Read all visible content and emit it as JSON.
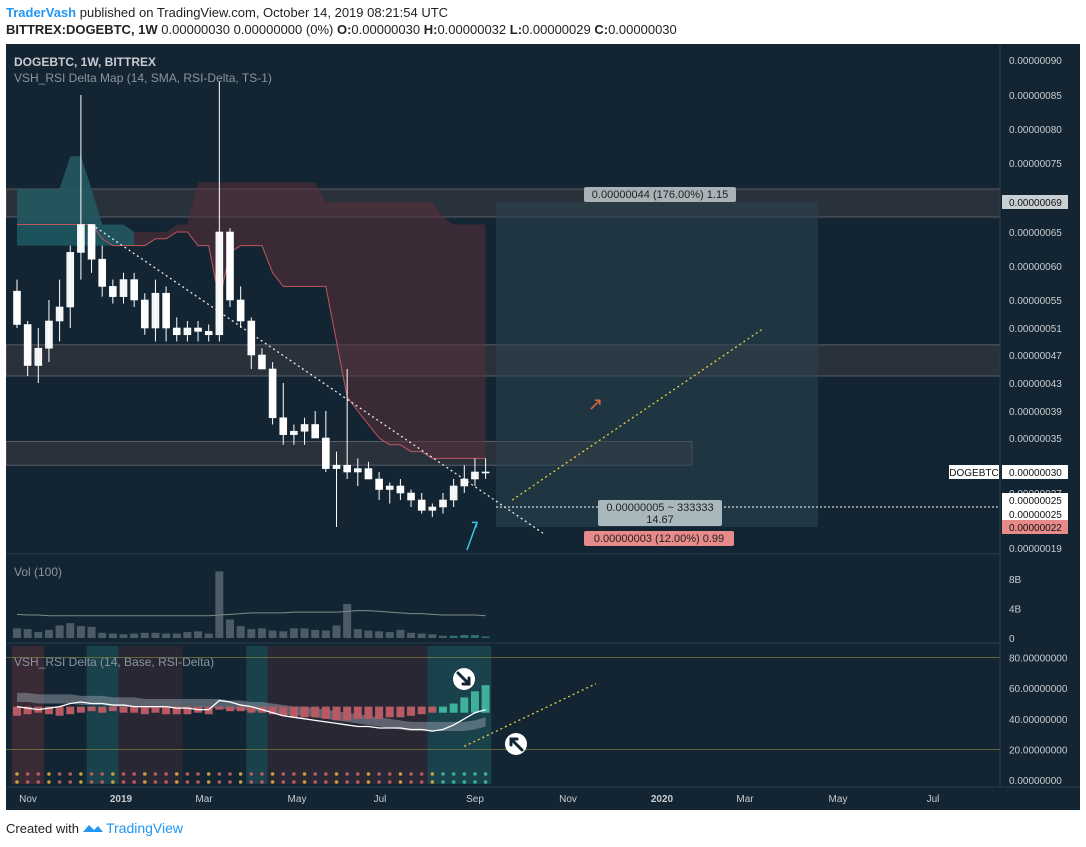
{
  "header": {
    "author": "TraderVash",
    "published_text": "published on TradingView.com, October 14, 2019 08:21:54 UTC",
    "symbol": "BITTREX:DOGEBTC, 1W",
    "change_text": "0.00000030 0.00000000 (0%)",
    "open_label": "O:",
    "open_value": "0.00000030",
    "high_label": "H:",
    "high_value": "0.00000032",
    "low_label": "L:",
    "low_value": "0.00000029",
    "close_label": "C:",
    "close_value": "0.00000030"
  },
  "footer": {
    "created_with": "Created with",
    "brand": "TradingView"
  },
  "chart_data": {
    "type": "candlestick",
    "title": "DOGEBTC, 1W, BITTREX",
    "indicator_label": "VSH_RSI Delta Map (14, SMA, RSI-Delta, TS-1)",
    "colors": {
      "background": "#132532",
      "up": "#ffffff",
      "down": "#ffffff",
      "cloud_red": "#5a2f3a",
      "cloud_teal": "#1f5b63",
      "zone": "#3c3c44",
      "target_box": "#2c4450",
      "stop_box": "#26404e",
      "trendline": "#e8e8e8",
      "projection": "#e6d23a",
      "arrow": "#35c8e6"
    },
    "price_axis": {
      "ticks": [
        "0.00000090",
        "0.00000085",
        "0.00000080",
        "0.00000075",
        "0.00000069",
        "0.00000065",
        "0.00000060",
        "0.00000055",
        "0.00000051",
        "0.00000047",
        "0.00000043",
        "0.00000039",
        "0.00000035",
        "0.00000030",
        "0.00000027",
        "0.00000025",
        "0.00000022",
        "0.00000019"
      ],
      "range": [
        1.8e-07,
        9.2e-07
      ]
    },
    "time_axis": {
      "labels": [
        "Nov",
        "2019",
        "Mar",
        "May",
        "Jul",
        "Sep",
        "Nov",
        "2020",
        "Mar",
        "May",
        "Jul"
      ]
    },
    "candles": [
      {
        "o": 5.63e-07,
        "h": 5.8e-07,
        "l": 5.1e-07,
        "c": 5.15e-07
      },
      {
        "o": 5.15e-07,
        "h": 5.2e-07,
        "l": 4.4e-07,
        "c": 4.55e-07
      },
      {
        "o": 4.55e-07,
        "h": 5.1e-07,
        "l": 4.3e-07,
        "c": 4.8e-07
      },
      {
        "o": 4.8e-07,
        "h": 5.5e-07,
        "l": 4.6e-07,
        "c": 5.2e-07
      },
      {
        "o": 5.2e-07,
        "h": 5.8e-07,
        "l": 4.9e-07,
        "c": 5.4e-07
      },
      {
        "o": 5.4e-07,
        "h": 6.3e-07,
        "l": 5.1e-07,
        "c": 6.2e-07
      },
      {
        "o": 6.2e-07,
        "h": 8.5e-07,
        "l": 5.8e-07,
        "c": 6.6e-07
      },
      {
        "o": 6.6e-07,
        "h": 6.6e-07,
        "l": 5.9e-07,
        "c": 6.1e-07
      },
      {
        "o": 6.1e-07,
        "h": 6.3e-07,
        "l": 5.55e-07,
        "c": 5.7e-07
      },
      {
        "o": 5.7e-07,
        "h": 5.8e-07,
        "l": 5.45e-07,
        "c": 5.55e-07
      },
      {
        "o": 5.55e-07,
        "h": 5.9e-07,
        "l": 5.45e-07,
        "c": 5.8e-07
      },
      {
        "o": 5.8e-07,
        "h": 5.9e-07,
        "l": 5.4e-07,
        "c": 5.5e-07
      },
      {
        "o": 5.5e-07,
        "h": 5.6e-07,
        "l": 5e-07,
        "c": 5.1e-07
      },
      {
        "o": 5.1e-07,
        "h": 5.8e-07,
        "l": 4.9e-07,
        "c": 5.6e-07
      },
      {
        "o": 5.6e-07,
        "h": 5.7e-07,
        "l": 4.9e-07,
        "c": 5.1e-07
      },
      {
        "o": 5.1e-07,
        "h": 5.25e-07,
        "l": 4.9e-07,
        "c": 5e-07
      },
      {
        "o": 5e-07,
        "h": 5.2e-07,
        "l": 4.9e-07,
        "c": 5.1e-07
      },
      {
        "o": 5.1e-07,
        "h": 5.2e-07,
        "l": 4.9e-07,
        "c": 5.05e-07
      },
      {
        "o": 5.05e-07,
        "h": 5.15e-07,
        "l": 4.9e-07,
        "c": 5e-07
      },
      {
        "o": 5e-07,
        "h": 8.7e-07,
        "l": 4.9e-07,
        "c": 6.5e-07
      },
      {
        "o": 6.5e-07,
        "h": 6.55e-07,
        "l": 5.4e-07,
        "c": 5.5e-07
      },
      {
        "o": 5.5e-07,
        "h": 5.7e-07,
        "l": 5.1e-07,
        "c": 5.2e-07
      },
      {
        "o": 5.2e-07,
        "h": 5.25e-07,
        "l": 4.5e-07,
        "c": 4.7e-07
      },
      {
        "o": 4.7e-07,
        "h": 4.8e-07,
        "l": 4.5e-07,
        "c": 4.5e-07
      },
      {
        "o": 4.5e-07,
        "h": 4.6e-07,
        "l": 3.7e-07,
        "c": 3.8e-07
      },
      {
        "o": 3.8e-07,
        "h": 4.3e-07,
        "l": 3.4e-07,
        "c": 3.55e-07
      },
      {
        "o": 3.55e-07,
        "h": 3.7e-07,
        "l": 3.4e-07,
        "c": 3.6e-07
      },
      {
        "o": 3.6e-07,
        "h": 3.8e-07,
        "l": 3.4e-07,
        "c": 3.7e-07
      },
      {
        "o": 3.7e-07,
        "h": 3.9e-07,
        "l": 3.5e-07,
        "c": 3.5e-07
      },
      {
        "o": 3.5e-07,
        "h": 3.9e-07,
        "l": 3e-07,
        "c": 3.05e-07
      },
      {
        "o": 3.05e-07,
        "h": 3.3e-07,
        "l": 2.2e-07,
        "c": 3.1e-07
      },
      {
        "o": 3.1e-07,
        "h": 4.5e-07,
        "l": 2.9e-07,
        "c": 3e-07
      },
      {
        "o": 3e-07,
        "h": 3.2e-07,
        "l": 2.8e-07,
        "c": 3.05e-07
      },
      {
        "o": 3.05e-07,
        "h": 3.15e-07,
        "l": 2.9e-07,
        "c": 2.9e-07
      },
      {
        "o": 2.9e-07,
        "h": 3e-07,
        "l": 2.6e-07,
        "c": 2.75e-07
      },
      {
        "o": 2.75e-07,
        "h": 2.85e-07,
        "l": 2.55e-07,
        "c": 2.8e-07
      },
      {
        "o": 2.8e-07,
        "h": 2.9e-07,
        "l": 2.6e-07,
        "c": 2.7e-07
      },
      {
        "o": 2.7e-07,
        "h": 2.75e-07,
        "l": 2.5e-07,
        "c": 2.6e-07
      },
      {
        "o": 2.6e-07,
        "h": 2.7e-07,
        "l": 2.4e-07,
        "c": 2.45e-07
      },
      {
        "o": 2.45e-07,
        "h": 2.55e-07,
        "l": 2.35e-07,
        "c": 2.5e-07
      },
      {
        "o": 2.5e-07,
        "h": 2.7e-07,
        "l": 2.4e-07,
        "c": 2.6e-07
      },
      {
        "o": 2.6e-07,
        "h": 2.9e-07,
        "l": 2.5e-07,
        "c": 2.8e-07
      },
      {
        "o": 2.8e-07,
        "h": 3.1e-07,
        "l": 2.7e-07,
        "c": 2.9e-07
      },
      {
        "o": 2.9e-07,
        "h": 3.2e-07,
        "l": 2.8e-07,
        "c": 3e-07
      },
      {
        "o": 3e-07,
        "h": 3.2e-07,
        "l": 2.9e-07,
        "c": 3e-07
      }
    ],
    "cloud": {
      "upper": [
        7.1e-07,
        7.1e-07,
        7.1e-07,
        7.1e-07,
        7.1e-07,
        7.6e-07,
        7.6e-07,
        7.1e-07,
        6.6e-07,
        6.6e-07,
        6.6e-07,
        6.5e-07,
        6.5e-07,
        6.5e-07,
        6.5e-07,
        6.6e-07,
        6.6e-07,
        7.2e-07,
        7.2e-07,
        7.2e-07,
        7.2e-07,
        7.2e-07,
        7.2e-07,
        7.2e-07,
        7.2e-07,
        7.2e-07,
        7.2e-07,
        7.2e-07,
        7.2e-07,
        6.9e-07,
        6.9e-07,
        6.9e-07,
        6.9e-07,
        6.9e-07,
        6.9e-07,
        6.9e-07,
        6.9e-07,
        6.9e-07,
        6.9e-07,
        6.9e-07,
        6.7e-07,
        6.6e-07,
        6.6e-07,
        6.6e-07,
        6.6e-07
      ],
      "lower": [
        6.6e-07,
        6.6e-07,
        6.6e-07,
        6.6e-07,
        6.6e-07,
        6.6e-07,
        6.6e-07,
        6.6e-07,
        6.4e-07,
        6.3e-07,
        6.3e-07,
        6.3e-07,
        6.3e-07,
        6.4e-07,
        6.4e-07,
        6.5e-07,
        6.5e-07,
        6.3e-07,
        6.3e-07,
        5.5e-07,
        6.2e-07,
        6.3e-07,
        6.3e-07,
        6.3e-07,
        5.9e-07,
        5.7e-07,
        5.7e-07,
        5.7e-07,
        5.7e-07,
        5.7e-07,
        4.9e-07,
        4.1e-07,
        3.9e-07,
        3.7e-07,
        3.5e-07,
        3.4e-07,
        3.4e-07,
        3.3e-07,
        3.3e-07,
        3.2e-07,
        3.2e-07,
        3.2e-07,
        3.2e-07,
        3.2e-07,
        3.2e-07
      ]
    },
    "zones": [
      {
        "from": 6.7e-07,
        "to": 7.1e-07
      },
      {
        "from": 4.4e-07,
        "to": 4.85e-07
      },
      {
        "from": 3.1e-07,
        "to": 3.45e-07
      }
    ],
    "position": {
      "entry": 2.5e-07,
      "target": 6.9e-07,
      "stop": 2.2e-07,
      "target_label": "0.00000044 (176.00%) 1.15",
      "entry_label_1": "0.00000005 ~ 333333",
      "entry_label_2": "14.67",
      "stop_label": "0.00000003 (12.00%) 0.99"
    },
    "last_price_tag": {
      "symbol": "DOGEBTC",
      "value": "0.00000030"
    },
    "axis_tags": [
      {
        "value": "0.00000069",
        "kind": "target"
      },
      {
        "value": "0.00000025",
        "kind": "entry"
      },
      {
        "value": "0.00000025",
        "kind": "entry"
      },
      {
        "value": "0.00000022",
        "kind": "stop"
      }
    ],
    "volume": {
      "label": "Vol (100)",
      "ticks": [
        "8B",
        "4B",
        "0"
      ],
      "values": [
        1.3,
        1.2,
        0.8,
        1.1,
        1.7,
        2.0,
        1.6,
        1.5,
        0.7,
        0.6,
        0.5,
        0.6,
        0.7,
        0.7,
        0.6,
        0.6,
        0.8,
        0.9,
        0.6,
        9.0,
        2.5,
        1.6,
        1.2,
        1.3,
        1.0,
        0.9,
        1.3,
        1.3,
        1.1,
        1.0,
        1.7,
        4.6,
        1.2,
        1.0,
        0.9,
        0.8,
        1.1,
        0.7,
        0.6,
        0.5,
        0.3,
        0.3,
        0.4,
        0.4,
        0.2
      ],
      "ma": [
        3.2,
        3.1,
        3.1,
        3.0,
        3.0,
        3.0,
        3.0,
        3.0,
        3.0,
        3.0,
        3.0,
        3.0,
        3.0,
        3.0,
        3.0,
        3.0,
        3.0,
        3.0,
        3.0,
        3.1,
        3.2,
        3.3,
        3.4,
        3.4,
        3.4,
        3.4,
        3.5,
        3.5,
        3.5,
        3.5,
        3.5,
        3.6,
        3.7,
        3.7,
        3.6,
        3.5,
        3.4,
        3.3,
        3.3,
        3.2,
        3.1,
        3.1,
        3.1,
        3.1,
        3.0
      ]
    },
    "rsi": {
      "label": "VSH_RSI Delta (14, Base, RSI-Delta)",
      "ticks": [
        "80.00000000",
        "60.00000000",
        "40.00000000",
        "20.00000000",
        "0.00000000"
      ],
      "range": [
        0,
        85
      ],
      "levels": [
        80,
        20
      ],
      "rsi_line": [
        48,
        47,
        46,
        47,
        48,
        50,
        51,
        50,
        50,
        49,
        49,
        48,
        48,
        48,
        48,
        47,
        47,
        46,
        46,
        52,
        51,
        49,
        48,
        46,
        44,
        42,
        41,
        40,
        39,
        38,
        37,
        36,
        35,
        35,
        34,
        34,
        34,
        33,
        33,
        32,
        33,
        36,
        40,
        44,
        46
      ],
      "delta": [
        -6,
        -5,
        -4,
        -5,
        -6,
        -5,
        -4,
        -3,
        -4,
        -3,
        -4,
        -4,
        -5,
        -4,
        -5,
        -5,
        -5,
        -4,
        -5,
        -2,
        -3,
        -3,
        -4,
        -4,
        -5,
        -6,
        -7,
        -7,
        -7,
        -8,
        -9,
        -9,
        -8,
        -8,
        -8,
        -7,
        -7,
        -6,
        -5,
        -4,
        4,
        6,
        10,
        14,
        18
      ],
      "gray_band": [
        54,
        54,
        53,
        53,
        53,
        53,
        52,
        52,
        52,
        51,
        51,
        51,
        50,
        50,
        50,
        50,
        50,
        50,
        50,
        50,
        49,
        49,
        48,
        48,
        47,
        46,
        45,
        45,
        44,
        43,
        42,
        41,
        40,
        39,
        38,
        37,
        36,
        35,
        35,
        35,
        35,
        35,
        35,
        36,
        38
      ]
    },
    "annotations": [
      "rocket",
      "down-right-arrow",
      "up-left-arrow"
    ]
  }
}
